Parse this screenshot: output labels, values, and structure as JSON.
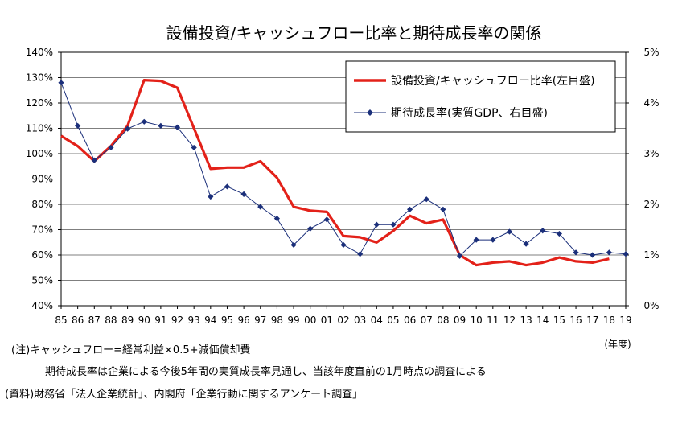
{
  "chart_data": {
    "type": "line",
    "title": "設備投資/キャッシュフロー比率と期待成長率の関係",
    "x_unit_label": "(年度)",
    "categories": [
      "85",
      "86",
      "87",
      "88",
      "89",
      "90",
      "91",
      "92",
      "93",
      "94",
      "95",
      "96",
      "97",
      "98",
      "99",
      "00",
      "01",
      "02",
      "03",
      "04",
      "05",
      "06",
      "07",
      "08",
      "09",
      "10",
      "11",
      "12",
      "13",
      "14",
      "15",
      "16",
      "17",
      "18",
      "19"
    ],
    "y_left": {
      "ticks": [
        "40%",
        "50%",
        "60%",
        "70%",
        "80%",
        "90%",
        "100%",
        "110%",
        "120%",
        "130%",
        "140%"
      ],
      "range": [
        40,
        140
      ]
    },
    "y_right": {
      "ticks": [
        "0%",
        "1%",
        "2%",
        "3%",
        "4%",
        "5%"
      ],
      "range": [
        0,
        5
      ]
    },
    "series": [
      {
        "name": "設備投資/キャッシュフロー比率(左目盛)",
        "axis": "left",
        "color": "#e32119",
        "values": [
          107,
          103,
          97,
          103,
          111,
          129,
          128.7,
          126,
          110,
          94,
          94.5,
          94.5,
          97,
          90.5,
          79,
          77.5,
          77,
          67.5,
          67,
          65,
          69.5,
          75.5,
          72.5,
          74,
          60,
          56,
          57,
          57.5,
          56,
          57,
          59,
          57.5,
          57,
          58.5,
          null
        ]
      },
      {
        "name": "期待成長率(実質GDP、右目盛)",
        "axis": "right",
        "color": "#1b2f7a",
        "values": [
          4.4,
          3.55,
          2.87,
          3.12,
          3.49,
          3.63,
          3.55,
          3.52,
          3.12,
          2.15,
          2.35,
          2.2,
          1.95,
          1.72,
          1.2,
          1.52,
          1.7,
          1.2,
          1.02,
          1.6,
          1.6,
          1.9,
          2.1,
          1.9,
          0.98,
          1.3,
          1.3,
          1.46,
          1.22,
          1.48,
          1.42,
          1.05,
          1.0,
          1.05,
          1.02
        ]
      }
    ]
  },
  "notes": {
    "line1": "(注)キャッシュフロー=経常利益×0.5+減価償却費",
    "line2": "期待成長率は企業による今後5年間の実質成長率見通し、当該年度直前の1月時点の調査による",
    "line3": "(資料)財務省「法人企業統計」、内閣府「企業行動に関するアンケート調査」"
  }
}
